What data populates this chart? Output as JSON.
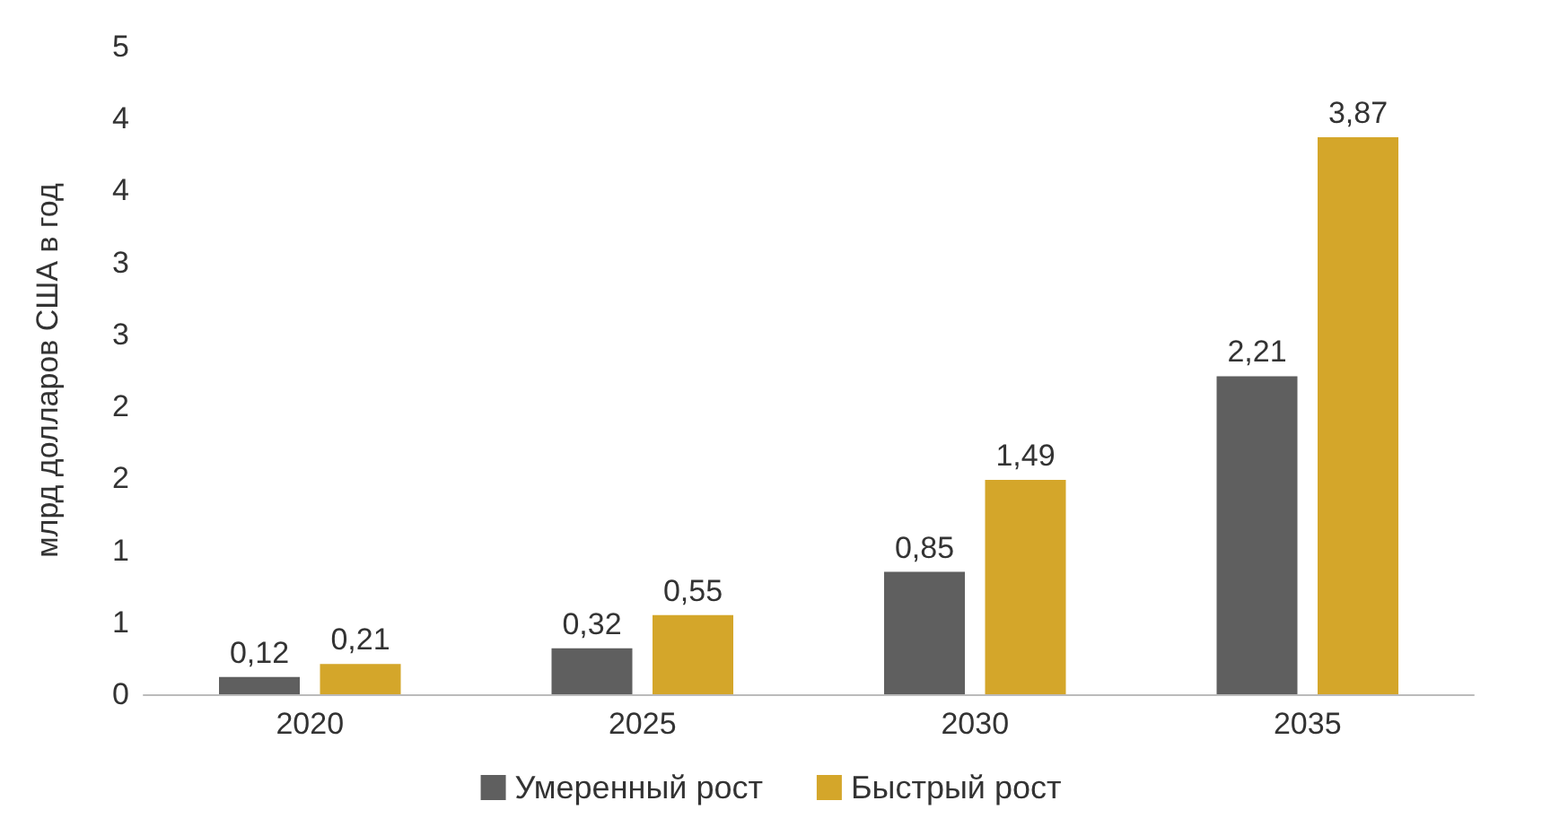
{
  "chart_data": {
    "type": "bar",
    "ylabel": "млрд долларов США в год",
    "categories": [
      "2020",
      "2025",
      "2030",
      "2035"
    ],
    "series": [
      {
        "name": "Умеренный рост",
        "color": "#5f5f5f",
        "values": [
          0.12,
          0.32,
          0.85,
          2.21
        ],
        "value_labels": [
          "0,12",
          "0,32",
          "0,85",
          "2,21"
        ]
      },
      {
        "name": "Быстрый рост",
        "color": "#d4a62a",
        "values": [
          0.21,
          0.55,
          1.49,
          3.87
        ],
        "value_labels": [
          "0,21",
          "0,55",
          "1,49",
          "3,87"
        ]
      }
    ],
    "ylim": [
      0,
      4.5
    ],
    "yticks": [
      {
        "value": 0,
        "label": "0"
      },
      {
        "value": 0.5,
        "label": "1"
      },
      {
        "value": 1,
        "label": "1"
      },
      {
        "value": 1.5,
        "label": "2"
      },
      {
        "value": 2,
        "label": "2"
      },
      {
        "value": 2.5,
        "label": "3"
      },
      {
        "value": 3,
        "label": "3"
      },
      {
        "value": 3.5,
        "label": "4"
      },
      {
        "value": 4,
        "label": "4"
      },
      {
        "value": 4.5,
        "label": "5"
      }
    ],
    "grid": false,
    "legend": "bottom"
  }
}
